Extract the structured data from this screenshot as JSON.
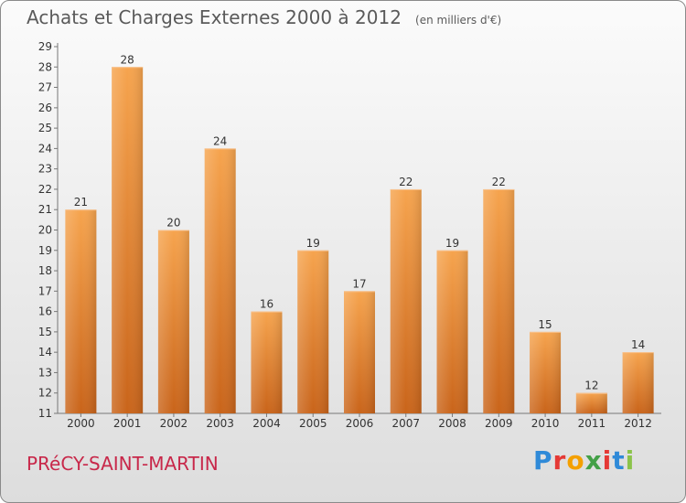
{
  "header": {
    "title": "Achats et Charges Externes 2000 à 2012",
    "unit": "(en milliers d'€)"
  },
  "footer": {
    "commune": "PRéCY-SAINT-MARTIN",
    "brand": "Proxiti",
    "brand_colors": [
      "#2f8ad8",
      "#e53935",
      "#f4a000",
      "#43a047",
      "#e53935",
      "#2f8ad8",
      "#8bc34a"
    ]
  },
  "colors": {
    "bar_top": "#f6a44e",
    "bar_bottom": "#c9641a",
    "axis_text": "#333333",
    "title_text": "#5a5a5a",
    "commune_text": "#c8284a"
  },
  "chart_data": {
    "type": "bar",
    "categories": [
      "2000",
      "2001",
      "2002",
      "2003",
      "2004",
      "2005",
      "2006",
      "2007",
      "2008",
      "2009",
      "2010",
      "2011",
      "2012"
    ],
    "values": [
      21,
      28,
      20,
      24,
      16,
      19,
      17,
      22,
      19,
      22,
      15,
      12,
      14
    ],
    "title": "Achats et Charges Externes 2000 à 2012",
    "subtitle": "(en milliers d'€)",
    "xlabel": "",
    "ylabel": "",
    "ylim": [
      11,
      29
    ],
    "yticks": [
      11,
      12,
      13,
      14,
      15,
      16,
      17,
      18,
      19,
      20,
      21,
      22,
      23,
      24,
      25,
      26,
      27,
      28,
      29
    ],
    "grid": false,
    "legend": "none"
  }
}
